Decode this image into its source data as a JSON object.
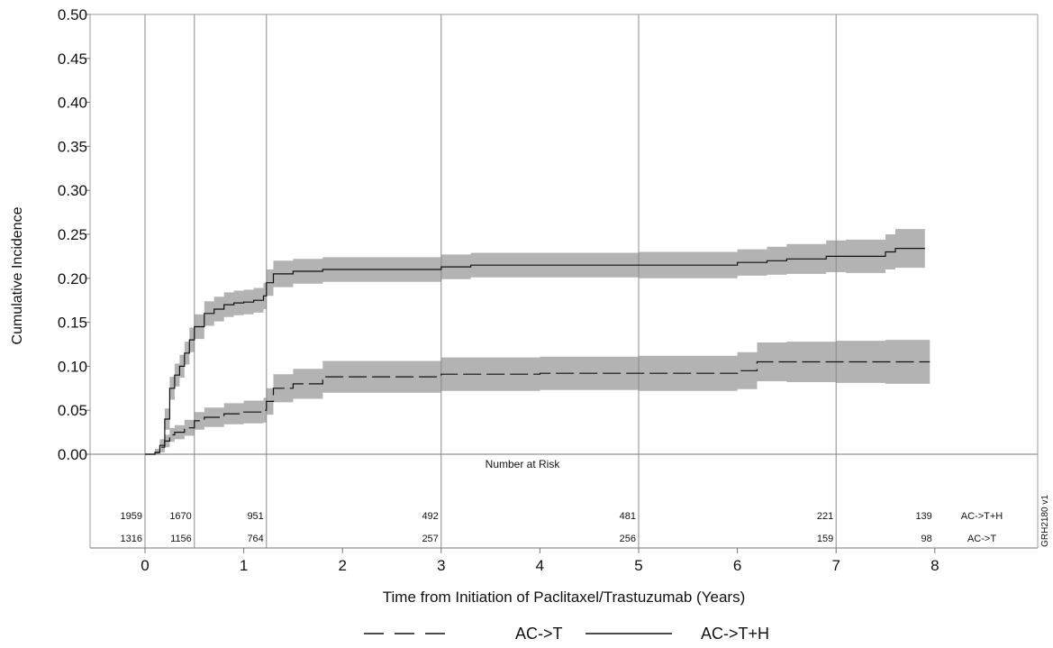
{
  "chart_data": {
    "type": "line",
    "title": "",
    "xlabel": "Time from Initiation of Paclitaxel/Trastuzumab (Years)",
    "ylabel": "Cumulative Incidence",
    "xlim": [
      0,
      9
    ],
    "ylim": [
      0,
      0.5
    ],
    "x_ticks": [
      "0",
      "1",
      "2",
      "3",
      "4",
      "5",
      "6",
      "7",
      "8"
    ],
    "y_ticks": [
      "0.00",
      "0.05",
      "0.10",
      "0.15",
      "0.20",
      "0.25",
      "0.30",
      "0.35",
      "0.40",
      "0.45",
      "0.50"
    ],
    "vertical_reference_lines_x": [
      0,
      0.5,
      1.23,
      3,
      5,
      7
    ],
    "grid": false,
    "legend_position": "bottom",
    "series": [
      {
        "name": "AC->T+H",
        "style": "solid",
        "color": "#111111",
        "band_color": "#b3b3b3",
        "x": [
          0,
          0.1,
          0.15,
          0.2,
          0.25,
          0.3,
          0.35,
          0.4,
          0.45,
          0.5,
          0.6,
          0.7,
          0.8,
          0.9,
          1.0,
          1.1,
          1.2,
          1.23,
          1.3,
          1.5,
          1.8,
          2.0,
          2.5,
          3.0,
          3.3,
          4.0,
          5.0,
          5.8,
          6.0,
          6.3,
          6.5,
          6.9,
          7.1,
          7.4,
          7.5,
          7.6,
          7.9
        ],
        "y": [
          0,
          0.002,
          0.01,
          0.04,
          0.075,
          0.09,
          0.1,
          0.115,
          0.13,
          0.145,
          0.16,
          0.165,
          0.17,
          0.172,
          0.173,
          0.175,
          0.18,
          0.195,
          0.205,
          0.208,
          0.21,
          0.21,
          0.21,
          0.213,
          0.215,
          0.215,
          0.215,
          0.215,
          0.218,
          0.22,
          0.222,
          0.225,
          0.225,
          0.225,
          0.23,
          0.234,
          0.234
        ],
        "lower": [
          0,
          0,
          0.004,
          0.028,
          0.062,
          0.077,
          0.087,
          0.102,
          0.116,
          0.131,
          0.146,
          0.151,
          0.156,
          0.158,
          0.159,
          0.161,
          0.165,
          0.18,
          0.19,
          0.194,
          0.196,
          0.196,
          0.196,
          0.199,
          0.201,
          0.201,
          0.2,
          0.2,
          0.203,
          0.204,
          0.205,
          0.207,
          0.206,
          0.206,
          0.21,
          0.212,
          0.21
        ],
        "upper": [
          0,
          0.006,
          0.017,
          0.052,
          0.088,
          0.103,
          0.113,
          0.128,
          0.144,
          0.159,
          0.174,
          0.179,
          0.184,
          0.186,
          0.187,
          0.189,
          0.195,
          0.21,
          0.22,
          0.222,
          0.224,
          0.224,
          0.224,
          0.227,
          0.229,
          0.229,
          0.23,
          0.23,
          0.233,
          0.236,
          0.239,
          0.243,
          0.244,
          0.244,
          0.25,
          0.256,
          0.258
        ],
        "number_at_risk": [
          "1959",
          "1670",
          "951",
          "492",
          "481",
          "221",
          "139"
        ],
        "risk_label": "AC->T+H"
      },
      {
        "name": "AC->T",
        "style": "dashed",
        "color": "#111111",
        "band_color": "#b3b3b3",
        "x": [
          0,
          0.1,
          0.15,
          0.2,
          0.25,
          0.3,
          0.4,
          0.5,
          0.6,
          0.8,
          1.0,
          1.2,
          1.23,
          1.3,
          1.5,
          1.8,
          2.0,
          2.5,
          3.0,
          4.0,
          5.0,
          5.9,
          6.0,
          6.2,
          6.5,
          7.0,
          7.5,
          7.95
        ],
        "y": [
          0,
          0.002,
          0.008,
          0.015,
          0.022,
          0.025,
          0.03,
          0.038,
          0.042,
          0.046,
          0.048,
          0.05,
          0.06,
          0.075,
          0.08,
          0.088,
          0.088,
          0.088,
          0.091,
          0.092,
          0.092,
          0.092,
          0.095,
          0.105,
          0.105,
          0.105,
          0.105,
          0.105
        ],
        "lower": [
          0,
          0,
          0.002,
          0.008,
          0.014,
          0.017,
          0.021,
          0.028,
          0.031,
          0.034,
          0.035,
          0.036,
          0.045,
          0.059,
          0.063,
          0.07,
          0.07,
          0.07,
          0.072,
          0.073,
          0.072,
          0.072,
          0.074,
          0.083,
          0.082,
          0.081,
          0.08,
          0.08
        ],
        "upper": [
          0,
          0.006,
          0.014,
          0.022,
          0.03,
          0.033,
          0.039,
          0.048,
          0.053,
          0.058,
          0.061,
          0.064,
          0.075,
          0.091,
          0.097,
          0.106,
          0.106,
          0.106,
          0.11,
          0.111,
          0.112,
          0.112,
          0.116,
          0.127,
          0.128,
          0.129,
          0.13,
          0.13
        ],
        "number_at_risk": [
          "1316",
          "1156",
          "764",
          "257",
          "256",
          "159",
          "98"
        ],
        "risk_label": "AC->T"
      }
    ],
    "number_at_risk_title": "Number at Risk",
    "number_at_risk_x": [
      0,
      0.5,
      1.23,
      3,
      5,
      7,
      8
    ],
    "side_id": "GRH2180 v1"
  }
}
